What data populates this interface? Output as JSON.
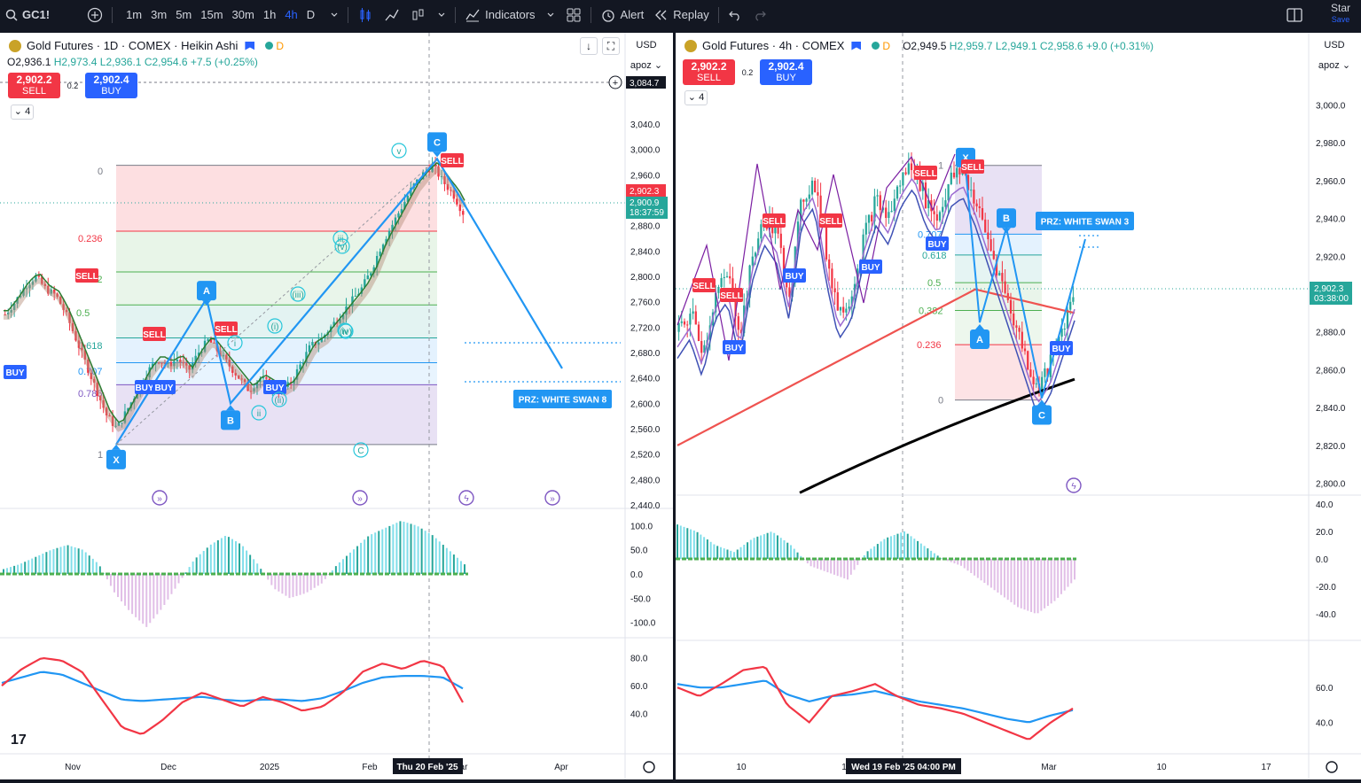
{
  "toolbar": {
    "symbol": "GC1!",
    "intervals": [
      "1m",
      "3m",
      "5m",
      "15m",
      "30m",
      "1h",
      "4h",
      "D"
    ],
    "active_interval": "4h",
    "indicators_label": "Indicators",
    "alert_label": "Alert",
    "replay_label": "Replay",
    "save_title": "Star",
    "save_sub": "Save"
  },
  "left": {
    "title": "Gold Futures · 1D · COMEX · Heikin Ashi",
    "d_badge": "D",
    "ohlc": {
      "o": "O2,936.1",
      "h": "H2,973.4",
      "l": "L2,936.1",
      "c": "C2,954.6",
      "chg": "+7.5 (+0.25%)"
    },
    "sell_price": "2,902.2",
    "sell_label": "SELL",
    "spread": "0.2",
    "buy_price": "2,902.4",
    "buy_label": "BUY",
    "indicator_count": "4",
    "currency": "USD",
    "scale_mode": "apoz",
    "crosshair_price": "3,084.7",
    "last_price": "2,902.3",
    "bid_price": "2,900.9",
    "countdown": "18:37:59",
    "crosshair_date": "Thu 20 Feb '25",
    "prz_label": "PRZ: WHITE SWAN 8",
    "x_ticks": [
      "Nov",
      "Dec",
      "2025",
      "Feb",
      "ar",
      "Apr"
    ],
    "fib_labels": [
      "0",
      "0.236",
      "0.382",
      "0.5",
      "0.618",
      "0.707",
      "0.786",
      "1"
    ],
    "pattern_points": [
      "X",
      "A",
      "B",
      "C"
    ],
    "wave_labels": [
      "i",
      "ii",
      "iii",
      "iv",
      "v",
      "(i)",
      "(ii)",
      "(iii)",
      "(iv)",
      "(v)",
      "C"
    ],
    "signals": [
      "SELL",
      "SELL",
      "SELL",
      "BUY",
      "BUY",
      "BUY",
      "BUY"
    ]
  },
  "right": {
    "title": "Gold Futures · 4h · COMEX",
    "d_badge": "D",
    "ohlc": {
      "o": "O2,949.5",
      "h": "H2,959.7",
      "l": "L2,949.1",
      "c": "C2,958.6",
      "chg": "+9.0 (+0.31%)"
    },
    "sell_price": "2,902.2",
    "sell_label": "SELL",
    "spread": "0.2",
    "buy_price": "2,902.4",
    "buy_label": "BUY",
    "indicator_count": "4",
    "currency": "USD",
    "scale_mode": "apoz",
    "last_price": "2,902.3",
    "countdown": "03:38:00",
    "crosshair_date": "Wed 19 Feb '25   04:00 PM",
    "prz_label": "PRZ: WHITE SWAN 3",
    "x_ticks": [
      "10",
      "1",
      "Mar",
      "10",
      "17"
    ],
    "fib_labels": [
      "1",
      "0.707",
      "0.618",
      "0.5",
      "0.382",
      "0.236",
      "0"
    ],
    "pattern_points": [
      "X",
      "A",
      "B",
      "C"
    ],
    "signals": [
      "SELL",
      "SELL",
      "SELL",
      "SELL",
      "SELL",
      "SELL",
      "BUY",
      "BUY",
      "BUY",
      "BUY",
      "BUY"
    ]
  },
  "chart_data": [
    {
      "type": "candlestick",
      "title": "Gold Futures · 1D · COMEX · Heikin Ashi",
      "ylim": [
        2440,
        3100
      ],
      "y_ticks": [
        "3,040.0",
        "3,000.0",
        "2,960.0",
        "2,920.0",
        "2,880.0",
        "2,840.0",
        "2,800.0",
        "2,760.0",
        "2,720.0",
        "2,680.0",
        "2,640.0",
        "2,600.0",
        "2,560.0",
        "2,520.0",
        "2,480.0",
        "2,440.0"
      ],
      "x_ticks": [
        "Nov",
        "Dec",
        "2025",
        "Feb",
        "ar",
        "Apr"
      ],
      "close_path": [
        2740,
        2760,
        2785,
        2800,
        2780,
        2770,
        2740,
        2700,
        2660,
        2620,
        2580,
        2560,
        2590,
        2620,
        2650,
        2670,
        2660,
        2670,
        2650,
        2680,
        2700,
        2680,
        2660,
        2640,
        2620,
        2640,
        2630,
        2620,
        2630,
        2660,
        2690,
        2700,
        2720,
        2740,
        2760,
        2780,
        2810,
        2850,
        2880,
        2910,
        2940,
        2960,
        2975,
        2950,
        2930,
        2900
      ],
      "harmonic_pattern": {
        "name": "WHITE SWAN 8",
        "X": 2535,
        "A": 2765,
        "B": 2600,
        "C": 2985,
        "projection": 2655
      },
      "oscillator_1": {
        "ylim": [
          -110,
          110
        ],
        "ticks": [
          "100.0",
          "50.0",
          "0.0",
          "-50.0",
          "-100.0"
        ],
        "values": [
          10,
          20,
          35,
          50,
          60,
          50,
          20,
          -40,
          -80,
          -110,
          -70,
          -20,
          30,
          60,
          80,
          60,
          20,
          -30,
          -50,
          -40,
          -20,
          20,
          50,
          80,
          95,
          110,
          100,
          80,
          50,
          20
        ]
      },
      "oscillator_2": {
        "ylim": [
          20,
          90
        ],
        "ticks": [
          "80.0",
          "60.0",
          "40.0"
        ],
        "fast": [
          60,
          72,
          80,
          78,
          70,
          50,
          30,
          25,
          35,
          48,
          55,
          50,
          45,
          52,
          48,
          42,
          45,
          55,
          70,
          76,
          72,
          78,
          74,
          48
        ],
        "slow": [
          62,
          66,
          70,
          68,
          62,
          56,
          50,
          49,
          50,
          51,
          52,
          50,
          49,
          50,
          50,
          49,
          51,
          56,
          62,
          66,
          67,
          67,
          66,
          58
        ]
      }
    },
    {
      "type": "candlestick",
      "title": "Gold Futures · 4h · COMEX",
      "ylim": [
        2790,
        3010
      ],
      "y_ticks": [
        "3,000.0",
        "2,980.0",
        "2,960.0",
        "2,940.0",
        "2,920.0",
        "2,900.0",
        "2,880.0",
        "2,860.0",
        "2,840.0",
        "2,820.0",
        "2,800.0"
      ],
      "x_ticks": [
        "10",
        "1",
        "Mar",
        "10",
        "17"
      ],
      "close_path": [
        2880,
        2890,
        2870,
        2900,
        2910,
        2880,
        2920,
        2940,
        2930,
        2900,
        2950,
        2960,
        2920,
        2890,
        2900,
        2930,
        2950,
        2940,
        2960,
        2970,
        2950,
        2940,
        2960,
        2965,
        2950,
        2930,
        2910,
        2890,
        2870,
        2850,
        2860,
        2880,
        2900
      ],
      "harmonic_pattern": {
        "name": "WHITE SWAN 3",
        "X": 2967,
        "A": 2885,
        "B": 2935,
        "C": 2845,
        "projection": 2929
      },
      "oscillator_1": {
        "ylim": [
          -45,
          45
        ],
        "ticks": [
          "40.0",
          "20.0",
          "0.0",
          "-20.0",
          "-40.0"
        ],
        "values": [
          25,
          20,
          10,
          5,
          15,
          20,
          10,
          -5,
          -10,
          -15,
          5,
          15,
          20,
          10,
          0,
          -5,
          -15,
          -25,
          -35,
          -40,
          -30,
          -15
        ]
      },
      "oscillator_2": {
        "ylim": [
          25,
          85
        ],
        "ticks": [
          "60.0",
          "40.0"
        ],
        "fast": [
          60,
          55,
          62,
          70,
          72,
          50,
          40,
          55,
          58,
          62,
          55,
          50,
          48,
          45,
          40,
          35,
          30,
          40,
          48
        ],
        "slow": [
          62,
          60,
          60,
          62,
          64,
          56,
          52,
          55,
          56,
          58,
          55,
          52,
          50,
          48,
          45,
          42,
          40,
          44,
          47
        ]
      }
    }
  ]
}
